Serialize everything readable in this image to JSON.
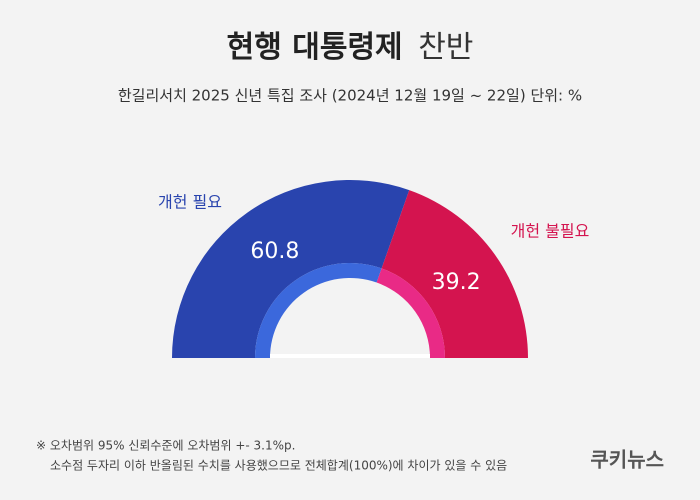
{
  "chart_data": {
    "type": "half-donut",
    "title": [
      "현행 대통령제",
      "찬반"
    ],
    "subtitle": "한길리서치 2025 신년 특집 조사 (2024년 12월 19일 ~ 22일) 단위: %",
    "categories": [
      "개헌 필요",
      "개헌 불필요"
    ],
    "values": [
      60.8,
      39.2
    ],
    "colors": [
      "#2944ae",
      "#d4144f"
    ],
    "inner_colors": [
      "#3b68dc",
      "#e92a86"
    ],
    "notes": [
      "※ 오차범위 95% 신뢰수준에 오차범위 +- 3.1%p.",
      "소수점 두자리 이하 반올림된 수치를 사용했으므로 전체합계(100%)에 차이가 있을 수 있음"
    ],
    "source": "쿠키뉴스"
  }
}
